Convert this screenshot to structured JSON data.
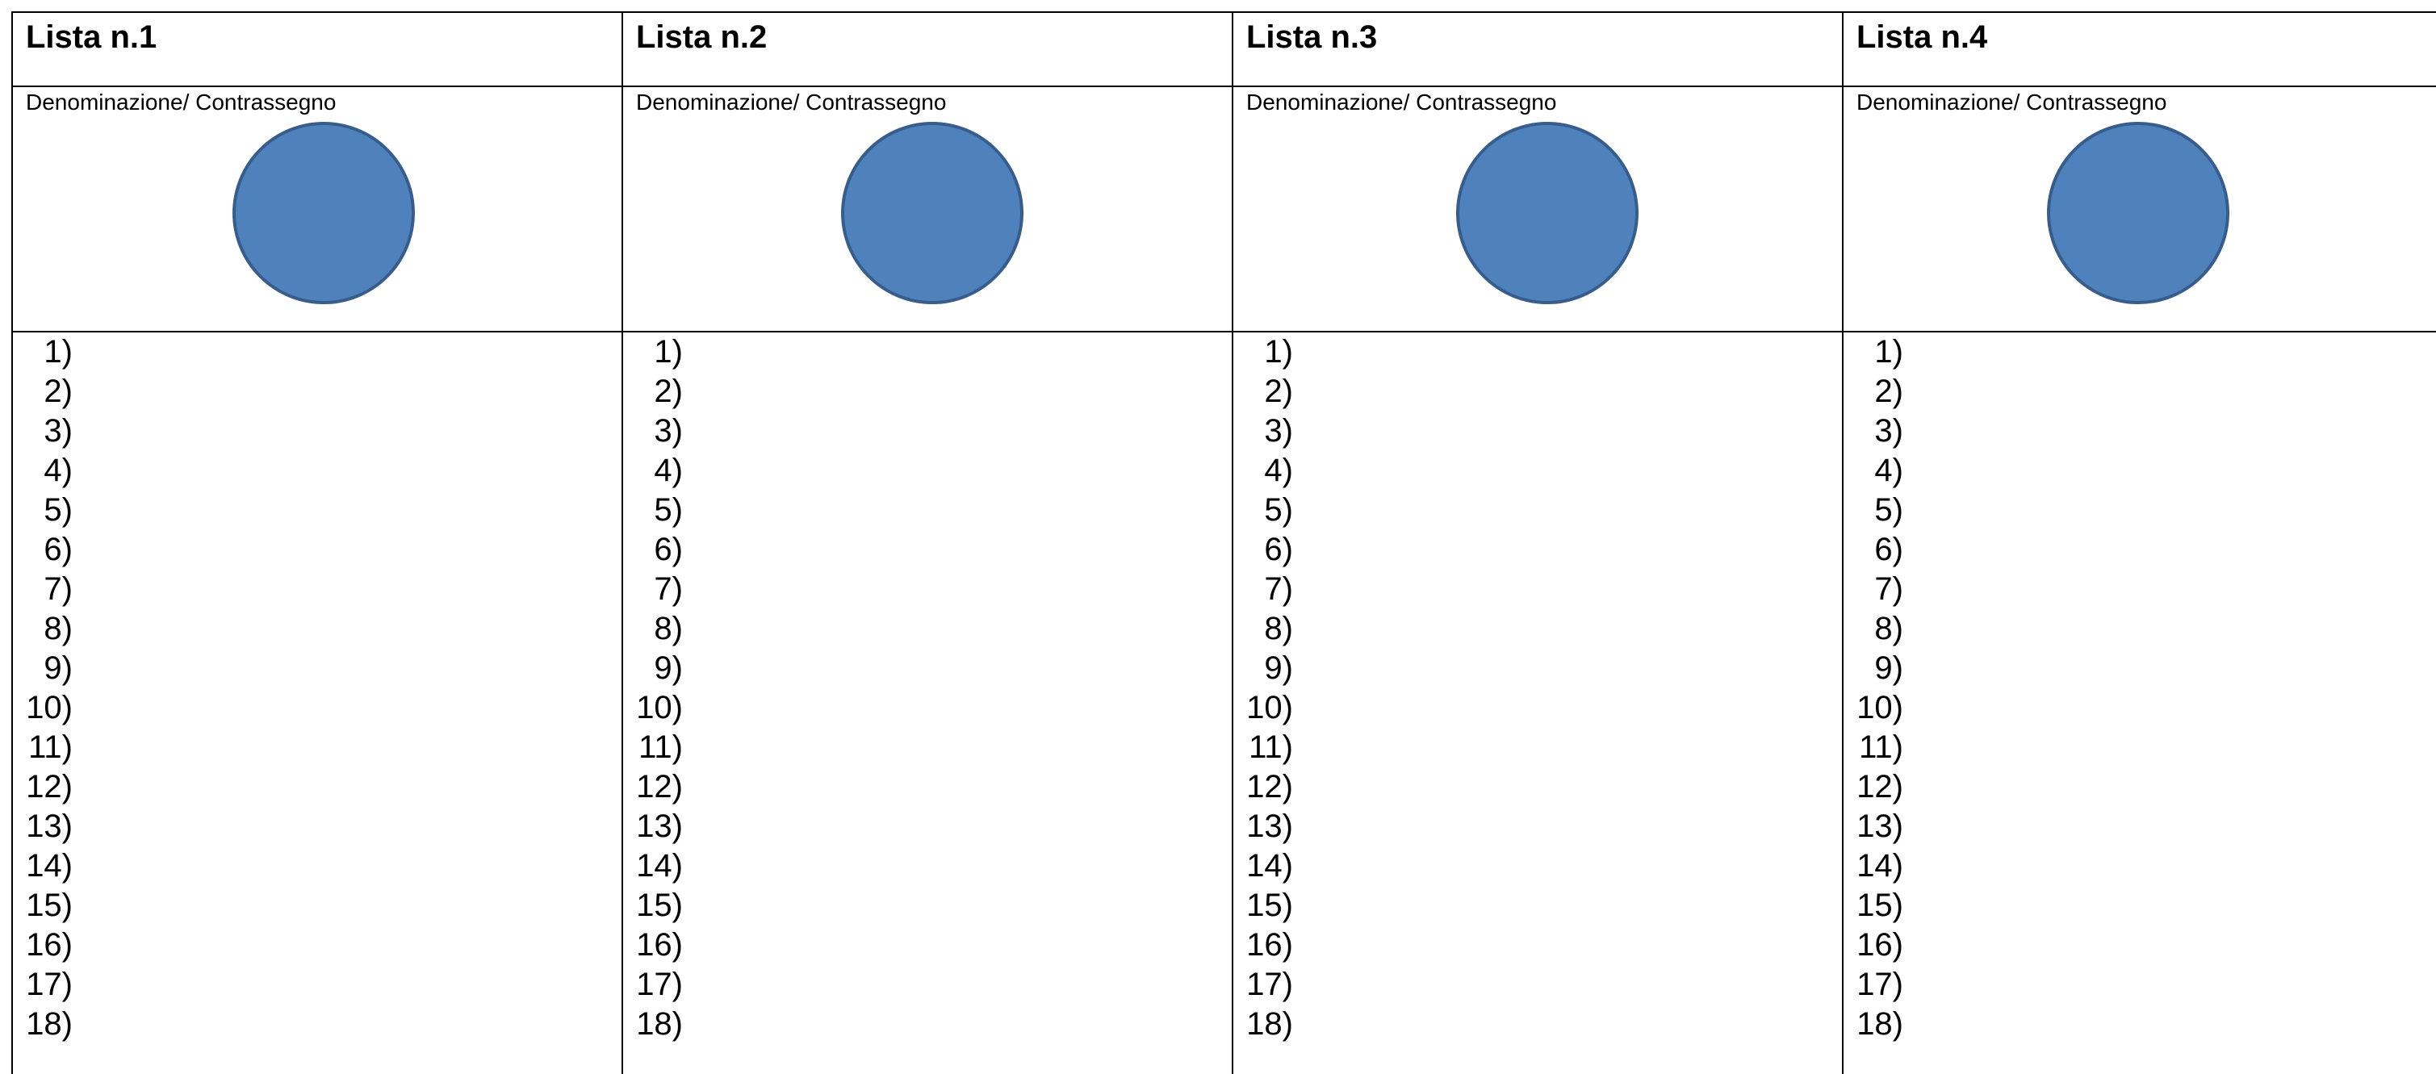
{
  "document": {
    "lists": [
      {
        "title": "Lista n.1",
        "logo_label": "Denominazione/ Contrassegno",
        "candidates": [
          "1)",
          "2)",
          "3)",
          "4)",
          "5)",
          "6)",
          "7)",
          "8)",
          "9)",
          "10)",
          "11)",
          "12)",
          "13)",
          "14)",
          "15)",
          "16)",
          "17)",
          "18)"
        ]
      },
      {
        "title": "Lista n.2",
        "logo_label": "Denominazione/ Contrassegno",
        "candidates": [
          "1)",
          "2)",
          "3)",
          "4)",
          "5)",
          "6)",
          "7)",
          "8)",
          "9)",
          "10)",
          "11)",
          "12)",
          "13)",
          "14)",
          "15)",
          "16)",
          "17)",
          "18)"
        ]
      },
      {
        "title": "Lista n.3",
        "logo_label": "Denominazione/ Contrassegno",
        "candidates": [
          "1)",
          "2)",
          "3)",
          "4)",
          "5)",
          "6)",
          "7)",
          "8)",
          "9)",
          "10)",
          "11)",
          "12)",
          "13)",
          "14)",
          "15)",
          "16)",
          "17)",
          "18)"
        ]
      },
      {
        "title": "Lista n.4",
        "logo_label": "Denominazione/ Contrassegno",
        "candidates": [
          "1)",
          "2)",
          "3)",
          "4)",
          "5)",
          "6)",
          "7)",
          "8)",
          "9)",
          "10)",
          "11)",
          "12)",
          "13)",
          "14)",
          "15)",
          "16)",
          "17)",
          "18)"
        ]
      }
    ],
    "colors": {
      "symbol_fill": "#4f81bd",
      "symbol_outline": "#385d8a",
      "grid_lines": "#000000"
    }
  }
}
